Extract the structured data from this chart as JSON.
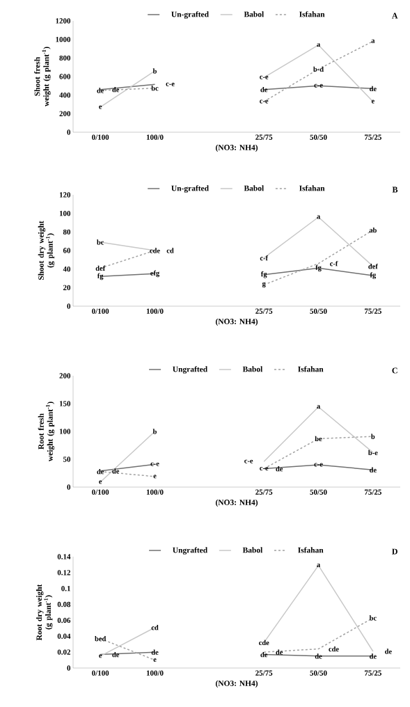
{
  "chart_data": [
    {
      "type": "line",
      "xlabel": "(NO3: NH4)",
      "ylabel": "Shoot fresh weight (g plant$^{-1}$)",
      "categories": [
        "0/100",
        "100/0",
        null,
        "25/75",
        "50/50",
        "75/25"
      ],
      "ylim": [
        0,
        1200
      ],
      "yticks": [
        0,
        200,
        400,
        600,
        800,
        1000,
        1200
      ],
      "legend": "top",
      "series": [
        {
          "name": "Un-grafted",
          "color": "#707070",
          "line_style": "solid",
          "values": [
            460,
            515,
            null,
            460,
            500,
            470
          ]
        },
        {
          "name": "Babol",
          "color": "#c8c8c8",
          "line_style": "solid",
          "values": [
            270,
            660,
            null,
            590,
            940,
            330
          ]
        },
        {
          "name": "Isfahan",
          "color": "#a0a0a0",
          "line_style": "dashed",
          "values": [
            450,
            475,
            null,
            330,
            680,
            980
          ]
        }
      ],
      "annotations": [
        "A",
        {
          "text": "de",
          "x": "0/100",
          "y": 460
        },
        {
          "text": "de",
          "x": "0/100",
          "y": 450
        },
        {
          "text": "e",
          "x": "0/100",
          "y": 270
        },
        {
          "text": "b",
          "x": "100/0",
          "y": 660
        },
        {
          "text": "c-e",
          "x": "100/0",
          "y": 515
        },
        {
          "text": "bc",
          "x": "100/0",
          "y": 475
        },
        {
          "text": "c-e",
          "x": "25/75",
          "y": 590
        },
        {
          "text": "de",
          "x": "25/75",
          "y": 460
        },
        {
          "text": "c-e",
          "x": "25/75",
          "y": 330
        },
        {
          "text": "a",
          "x": "50/50",
          "y": 940
        },
        {
          "text": "b-d",
          "x": "50/50",
          "y": 680
        },
        {
          "text": "c-e",
          "x": "50/50",
          "y": 500
        },
        {
          "text": "a",
          "x": "75/25",
          "y": 980
        },
        {
          "text": "de",
          "x": "75/25",
          "y": 470
        },
        {
          "text": "e",
          "x": "75/25",
          "y": 330
        }
      ]
    },
    {
      "type": "line",
      "xlabel": "(NO3: NH4)",
      "ylabel": "Shoot dry weight (g plant$^{-1}$)",
      "categories": [
        "0/100",
        "100/0",
        null,
        "25/75",
        "50/50",
        "75/25"
      ],
      "ylim": [
        0,
        120
      ],
      "yticks": [
        0,
        20,
        40,
        60,
        80,
        100,
        120
      ],
      "legend": "top",
      "series": [
        {
          "name": "Un-grafted",
          "color": "#707070",
          "line_style": "solid",
          "values": [
            32,
            35,
            null,
            34,
            41,
            33
          ]
        },
        {
          "name": "Babol",
          "color": "#c8c8c8",
          "line_style": "solid",
          "values": [
            69,
            60,
            null,
            52,
            96,
            43
          ]
        },
        {
          "name": "Isfahan",
          "color": "#a0a0a0",
          "line_style": "dashed",
          "values": [
            41,
            60,
            null,
            23,
            46,
            82
          ]
        }
      ],
      "annotations": [
        "B",
        {
          "text": "bc",
          "x": "0/100",
          "y": 69
        },
        {
          "text": "def",
          "x": "0/100",
          "y": 41
        },
        {
          "text": "fg",
          "x": "0/100",
          "y": 32
        },
        {
          "text": "cde",
          "x": "100/0",
          "y": 60
        },
        {
          "text": "cd",
          "x": "100/0",
          "y": 60
        },
        {
          "text": "efg",
          "x": "100/0",
          "y": 35
        },
        {
          "text": "c-f",
          "x": "25/75",
          "y": 52
        },
        {
          "text": "fg",
          "x": "25/75",
          "y": 34
        },
        {
          "text": "g",
          "x": "25/75",
          "y": 23
        },
        {
          "text": "a",
          "x": "50/50",
          "y": 96
        },
        {
          "text": "c-f",
          "x": "50/50",
          "y": 46
        },
        {
          "text": "fg",
          "x": "50/50",
          "y": 41
        },
        {
          "text": "ab",
          "x": "75/25",
          "y": 82
        },
        {
          "text": "def",
          "x": "75/25",
          "y": 43
        },
        {
          "text": "fg",
          "x": "75/25",
          "y": 33
        }
      ]
    },
    {
      "type": "line",
      "xlabel": "(NO3: NH4)",
      "ylabel": "Root fresh weight (g plant$^{-1}$)",
      "categories": [
        "0/100",
        "100/0",
        null,
        "25/75",
        "50/50",
        "75/25"
      ],
      "ylim": [
        0,
        200
      ],
      "yticks": [
        0,
        50,
        100,
        150,
        200
      ],
      "legend": "top",
      "series": [
        {
          "name": "Ungrafted",
          "color": "#707070",
          "line_style": "solid",
          "values": [
            29,
            41,
            null,
            33,
            40,
            31
          ]
        },
        {
          "name": "Babol",
          "color": "#c8c8c8",
          "line_style": "solid",
          "values": [
            9,
            100,
            null,
            46,
            144,
            62
          ]
        },
        {
          "name": "Isfahan",
          "color": "#a0a0a0",
          "line_style": "dashed",
          "values": [
            28,
            19,
            null,
            33,
            87,
            91
          ]
        }
      ],
      "annotations": [
        "C",
        {
          "text": "de",
          "x": "0/100",
          "y": 28
        },
        {
          "text": "de",
          "x": "0/100",
          "y": 29
        },
        {
          "text": "e",
          "x": "0/100",
          "y": 9
        },
        {
          "text": "b",
          "x": "100/0",
          "y": 100
        },
        {
          "text": "c-e",
          "x": "100/0",
          "y": 41
        },
        {
          "text": "e",
          "x": "100/0",
          "y": 19
        },
        {
          "text": "c-e",
          "x": "25/75",
          "y": 33
        },
        {
          "text": "c-e",
          "x": "25/75",
          "y": 46
        },
        {
          "text": "de",
          "x": "25/75",
          "y": 33
        },
        {
          "text": "a",
          "x": "50/50",
          "y": 144
        },
        {
          "text": "be",
          "x": "50/50",
          "y": 87
        },
        {
          "text": "c-e",
          "x": "50/50",
          "y": 40
        },
        {
          "text": "b",
          "x": "75/25",
          "y": 91
        },
        {
          "text": "b-e",
          "x": "75/25",
          "y": 62
        },
        {
          "text": "de",
          "x": "75/25",
          "y": 31
        }
      ]
    },
    {
      "type": "line",
      "xlabel": "(NO3: NH4)",
      "ylabel": "Root dry weight (g plant$^{-1}$)",
      "categories": [
        "0/100",
        "100/0",
        null,
        "25/75",
        "50/50",
        "75/25"
      ],
      "ylim": [
        0,
        0.14
      ],
      "yticks": [
        0,
        0.02,
        0.04,
        0.06,
        0.08,
        0.1,
        0.12,
        0.14
      ],
      "legend": "top",
      "series": [
        {
          "name": "Ungrafted",
          "color": "#707070",
          "line_style": "solid",
          "values": [
            0.017,
            0.02,
            null,
            0.017,
            0.015,
            0.015
          ]
        },
        {
          "name": "Babol",
          "color": "#c8c8c8",
          "line_style": "solid",
          "values": [
            0.015,
            0.051,
            null,
            0.032,
            0.129,
            0.021
          ]
        },
        {
          "name": "Isfahan",
          "color": "#a0a0a0",
          "line_style": "dashed",
          "values": [
            0.037,
            0.01,
            null,
            0.02,
            0.024,
            0.063
          ]
        }
      ],
      "annotations": [
        "D",
        {
          "text": "bed",
          "x": "0/100",
          "y": 0.037
        },
        {
          "text": "de",
          "x": "0/100",
          "y": 0.017
        },
        {
          "text": "e",
          "x": "0/100",
          "y": 0.015
        },
        {
          "text": "cd",
          "x": "100/0",
          "y": 0.051
        },
        {
          "text": "de",
          "x": "100/0",
          "y": 0.02
        },
        {
          "text": "e",
          "x": "100/0",
          "y": 0.01
        },
        {
          "text": "cde",
          "x": "25/75",
          "y": 0.032
        },
        {
          "text": "de",
          "x": "25/75",
          "y": 0.02
        },
        {
          "text": "de",
          "x": "25/75",
          "y": 0.017
        },
        {
          "text": "a",
          "x": "50/50",
          "y": 0.129
        },
        {
          "text": "cde",
          "x": "50/50",
          "y": 0.024
        },
        {
          "text": "de",
          "x": "50/50",
          "y": 0.015
        },
        {
          "text": "bc",
          "x": "75/25",
          "y": 0.063
        },
        {
          "text": "de",
          "x": "75/25",
          "y": 0.021
        },
        {
          "text": "de",
          "x": "75/25",
          "y": 0.015
        }
      ]
    }
  ]
}
